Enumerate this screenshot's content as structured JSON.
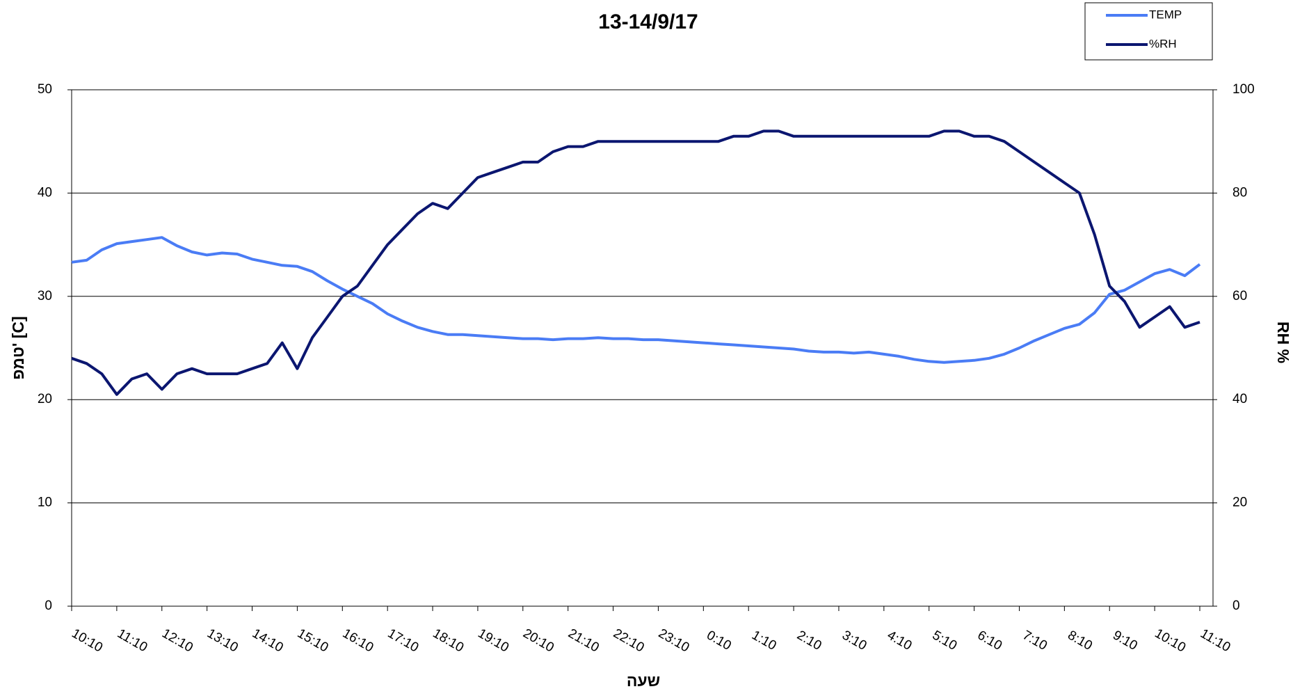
{
  "chart_data": {
    "type": "line",
    "title": "13-14/9/17",
    "x_label": "שעה",
    "y_label": "טמפ' [C]",
    "y2_label": "RH %",
    "categories": [
      "10:10",
      null,
      null,
      "11:10",
      null,
      null,
      "12:10",
      null,
      null,
      "13:10",
      null,
      null,
      "14:10",
      null,
      null,
      "15:10",
      null,
      null,
      "16:10",
      null,
      null,
      "17:10",
      null,
      null,
      "18:10",
      null,
      null,
      "19:10",
      null,
      null,
      "20:10",
      null,
      null,
      "21:10",
      null,
      null,
      "22:10",
      null,
      null,
      "23:10",
      null,
      null,
      "0:10",
      null,
      null,
      "1:10",
      null,
      null,
      "2:10",
      null,
      null,
      "3:10",
      null,
      null,
      "4:10",
      null,
      null,
      "5:10",
      null,
      null,
      "6:10",
      null,
      null,
      "7:10",
      null,
      null,
      "8:10",
      null,
      null,
      "9:10",
      null,
      null,
      "10:10",
      null,
      null,
      "11:10"
    ],
    "series": [
      {
        "name": "TEMP",
        "color": "#4a7cf5",
        "values": [
          33.3,
          33.5,
          34.5,
          35.1,
          35.3,
          35.5,
          35.7,
          34.9,
          34.3,
          34.0,
          34.2,
          34.1,
          33.6,
          33.3,
          33.0,
          32.9,
          32.4,
          31.5,
          30.7,
          30.0,
          29.3,
          28.3,
          27.6,
          27.0,
          26.6,
          26.3,
          26.3,
          26.2,
          26.1,
          26.0,
          25.9,
          25.9,
          25.8,
          25.9,
          25.9,
          26.0,
          25.9,
          25.9,
          25.8,
          25.8,
          25.7,
          25.6,
          25.5,
          25.4,
          25.3,
          25.2,
          25.1,
          25.0,
          24.9,
          24.7,
          24.6,
          24.6,
          24.5,
          24.6,
          24.4,
          24.2,
          23.9,
          23.7,
          23.6,
          23.7,
          23.8,
          24.0,
          24.4,
          25.0,
          25.7,
          26.3,
          26.9,
          27.3,
          28.4,
          30.2,
          30.6,
          31.4,
          32.2,
          32.6,
          32.0,
          33.1
        ]
      },
      {
        "name": "%RH",
        "color": "#0b1670",
        "axis": "y2",
        "values": [
          48,
          47,
          45,
          41,
          44,
          45,
          42,
          45,
          46,
          45,
          45,
          45,
          46,
          47,
          51,
          46,
          52,
          56,
          60,
          62,
          66,
          70,
          73,
          76,
          78,
          77,
          80,
          83,
          84,
          85,
          86,
          86,
          88,
          89,
          89,
          90,
          90,
          90,
          90,
          90,
          90,
          90,
          90,
          90,
          91,
          91,
          92,
          92,
          91,
          91,
          91,
          91,
          91,
          91,
          91,
          91,
          91,
          91,
          92,
          92,
          91,
          91,
          90,
          88,
          86,
          84,
          82,
          80,
          72,
          62,
          59,
          54,
          56,
          58,
          54,
          55
        ]
      }
    ],
    "ylim": [
      0,
      50
    ],
    "yticks": [
      0,
      10,
      20,
      30,
      40,
      50
    ],
    "y2lim": [
      0,
      100
    ],
    "y2ticks": [
      0,
      20,
      40,
      60,
      80,
      100
    ],
    "grid": true,
    "legend": "top-right"
  }
}
